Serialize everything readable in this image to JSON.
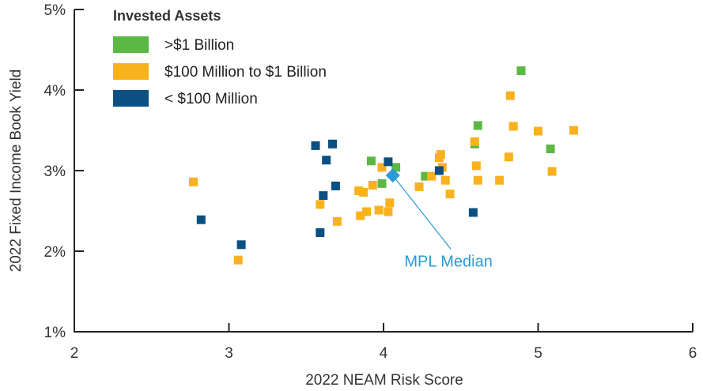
{
  "chart_data": {
    "type": "scatter",
    "xlabel": "2022 NEAM Risk Score",
    "ylabel": "2022 Fixed Income Book Yield",
    "xlim": [
      2,
      6
    ],
    "ylim": [
      1,
      5
    ],
    "x_ticks": [
      "2",
      "3",
      "4",
      "5",
      "6"
    ],
    "y_ticks": [
      "1%",
      "2%",
      "3%",
      "4%",
      "5%"
    ],
    "legend_title": "Invested Assets",
    "legend_position": "top-left",
    "grid": false,
    "series": [
      {
        "name": ">$1 Billion",
        "color": "#5cb844",
        "points": [
          [
            3.92,
            3.12
          ],
          [
            3.99,
            2.84
          ],
          [
            4.08,
            3.04
          ],
          [
            4.27,
            2.93
          ],
          [
            4.59,
            3.33
          ],
          [
            4.61,
            3.56
          ],
          [
            4.89,
            4.24
          ],
          [
            5.08,
            3.27
          ]
        ]
      },
      {
        "name": "$100 Million to $1 Billion",
        "color": "#f9b21d",
        "points": [
          [
            2.77,
            2.86
          ],
          [
            3.06,
            1.89
          ],
          [
            3.59,
            2.58
          ],
          [
            3.7,
            2.37
          ],
          [
            3.84,
            2.75
          ],
          [
            3.85,
            2.44
          ],
          [
            3.87,
            2.73
          ],
          [
            3.89,
            2.49
          ],
          [
            3.93,
            2.82
          ],
          [
            3.97,
            2.51
          ],
          [
            3.99,
            3.04
          ],
          [
            4.03,
            2.49
          ],
          [
            4.04,
            2.6
          ],
          [
            4.23,
            2.8
          ],
          [
            4.31,
            2.93
          ],
          [
            4.36,
            3.16
          ],
          [
            4.37,
            3.2
          ],
          [
            4.38,
            3.04
          ],
          [
            4.4,
            2.88
          ],
          [
            4.43,
            2.71
          ],
          [
            4.59,
            3.36
          ],
          [
            4.6,
            3.06
          ],
          [
            4.61,
            2.88
          ],
          [
            4.75,
            2.88
          ],
          [
            4.81,
            3.17
          ],
          [
            4.82,
            3.93
          ],
          [
            4.84,
            3.55
          ],
          [
            5.0,
            3.49
          ],
          [
            5.09,
            2.99
          ],
          [
            5.23,
            3.5
          ]
        ]
      },
      {
        "name": "< $100 Million",
        "color": "#0c4f82",
        "points": [
          [
            2.82,
            2.39
          ],
          [
            3.08,
            2.08
          ],
          [
            3.56,
            3.31
          ],
          [
            3.59,
            2.23
          ],
          [
            3.61,
            2.69
          ],
          [
            3.63,
            3.13
          ],
          [
            3.67,
            3.33
          ],
          [
            3.69,
            2.81
          ],
          [
            4.03,
            3.11
          ],
          [
            4.36,
            3.0
          ],
          [
            4.58,
            2.48
          ]
        ]
      }
    ],
    "annotations": [
      {
        "text": "MPL Median",
        "point": [
          4.06,
          2.94
        ],
        "label_at": [
          4.42,
          1.81
        ],
        "color": "#2b9ad6"
      }
    ]
  }
}
